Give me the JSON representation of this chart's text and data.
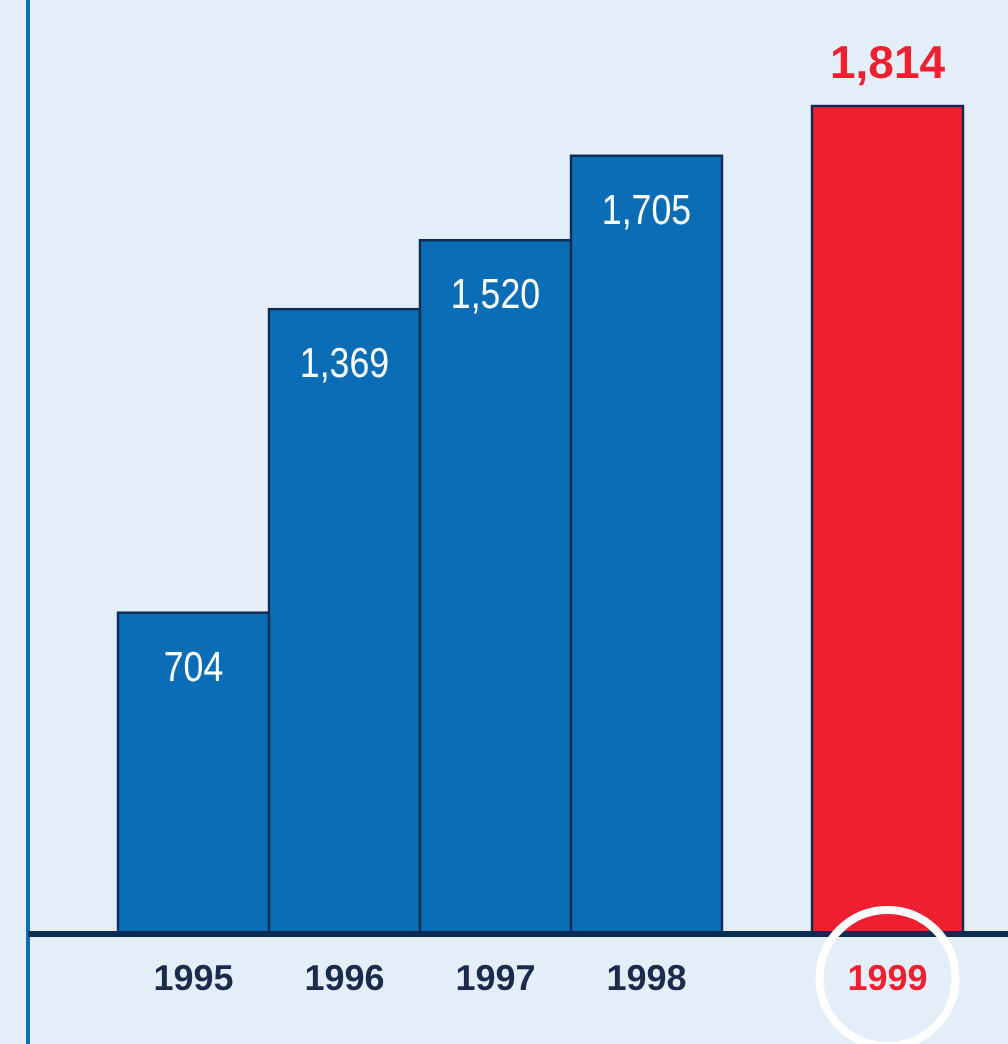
{
  "chart_data": {
    "type": "bar",
    "categories": [
      "1995",
      "1996",
      "1997",
      "1998",
      "1999"
    ],
    "values": [
      704,
      1369,
      1520,
      1705,
      1814
    ],
    "value_labels": [
      "704",
      "1,369",
      "1,520",
      "1,705",
      "1,814"
    ],
    "colors": [
      "#0a6db5",
      "#0a6db5",
      "#0a6db5",
      "#0a6db5",
      "#ee1f2e"
    ]
  }
}
